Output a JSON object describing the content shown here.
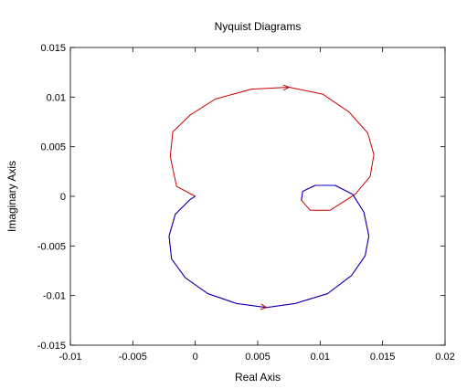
{
  "chart_data": {
    "type": "line",
    "title": "Nyquist Diagrams",
    "xlabel": "Real Axis",
    "ylabel": "Imaginary Axis",
    "xlim": [
      -0.01,
      0.02
    ],
    "ylim": [
      -0.015,
      0.015
    ],
    "grid": false,
    "x_ticks": [
      -0.01,
      -0.005,
      0,
      0.005,
      0.01,
      0.015,
      0.02
    ],
    "x_tick_labels": [
      "-0.01",
      "-0.005",
      "0",
      "0.005",
      "0.01",
      "0.015",
      "0.02"
    ],
    "y_ticks": [
      0.015,
      0.01,
      0.005,
      0,
      -0.005,
      -0.01,
      -0.015
    ],
    "y_tick_labels": [
      "0.015",
      "0.01",
      "0.005",
      "0",
      "-0.005",
      "-0.01",
      "-0.015"
    ],
    "series": [
      {
        "color": "#cc0000",
        "x": [
          0,
          -0.0015,
          -0.002,
          -0.0018,
          -0.0004,
          0.0016,
          0.0045,
          0.0075,
          0.0102,
          0.0123,
          0.0138,
          0.0143,
          0.014,
          0.0128,
          0.0108,
          0.0092,
          0.0085,
          0.0086,
          0.0096,
          0.0112,
          0.0126,
          0.0135,
          0.0139,
          0.0136,
          0.0125,
          0.0106,
          0.008,
          0.0057,
          0.0033,
          0.001,
          -0.0008,
          -0.0019,
          -0.0021,
          -0.0016,
          -0.0004,
          0
        ],
        "y": [
          0,
          0.001,
          0.004,
          0.0065,
          0.0082,
          0.0098,
          0.0108,
          0.011,
          0.0103,
          0.0085,
          0.0064,
          0.0042,
          0.002,
          0.0002,
          -0.0014,
          -0.0014,
          -0.0004,
          0.0005,
          0.0011,
          0.0011,
          0.0002,
          -0.0016,
          -0.004,
          -0.006,
          -0.008,
          -0.0098,
          -0.0108,
          -0.0112,
          -0.0108,
          -0.0098,
          -0.0082,
          -0.0063,
          -0.004,
          -0.0018,
          -0.0003,
          0
        ]
      },
      {
        "color": "#0000cc",
        "x": [
          0.0085,
          0.0086,
          0.0096,
          0.0112,
          0.0126,
          0.0135,
          0.0139,
          0.0136,
          0.0125,
          0.0106,
          0.008,
          0.0057,
          0.0033,
          0.001,
          -0.0008,
          -0.0019,
          -0.0021,
          -0.0016,
          -0.0004,
          0
        ],
        "y": [
          -0.0004,
          0.0005,
          0.0011,
          0.0011,
          0.0002,
          -0.0016,
          -0.004,
          -0.006,
          -0.008,
          -0.0098,
          -0.0108,
          -0.0112,
          -0.0108,
          -0.0098,
          -0.0082,
          -0.0063,
          -0.004,
          -0.0018,
          -0.0003,
          0
        ]
      }
    ]
  }
}
